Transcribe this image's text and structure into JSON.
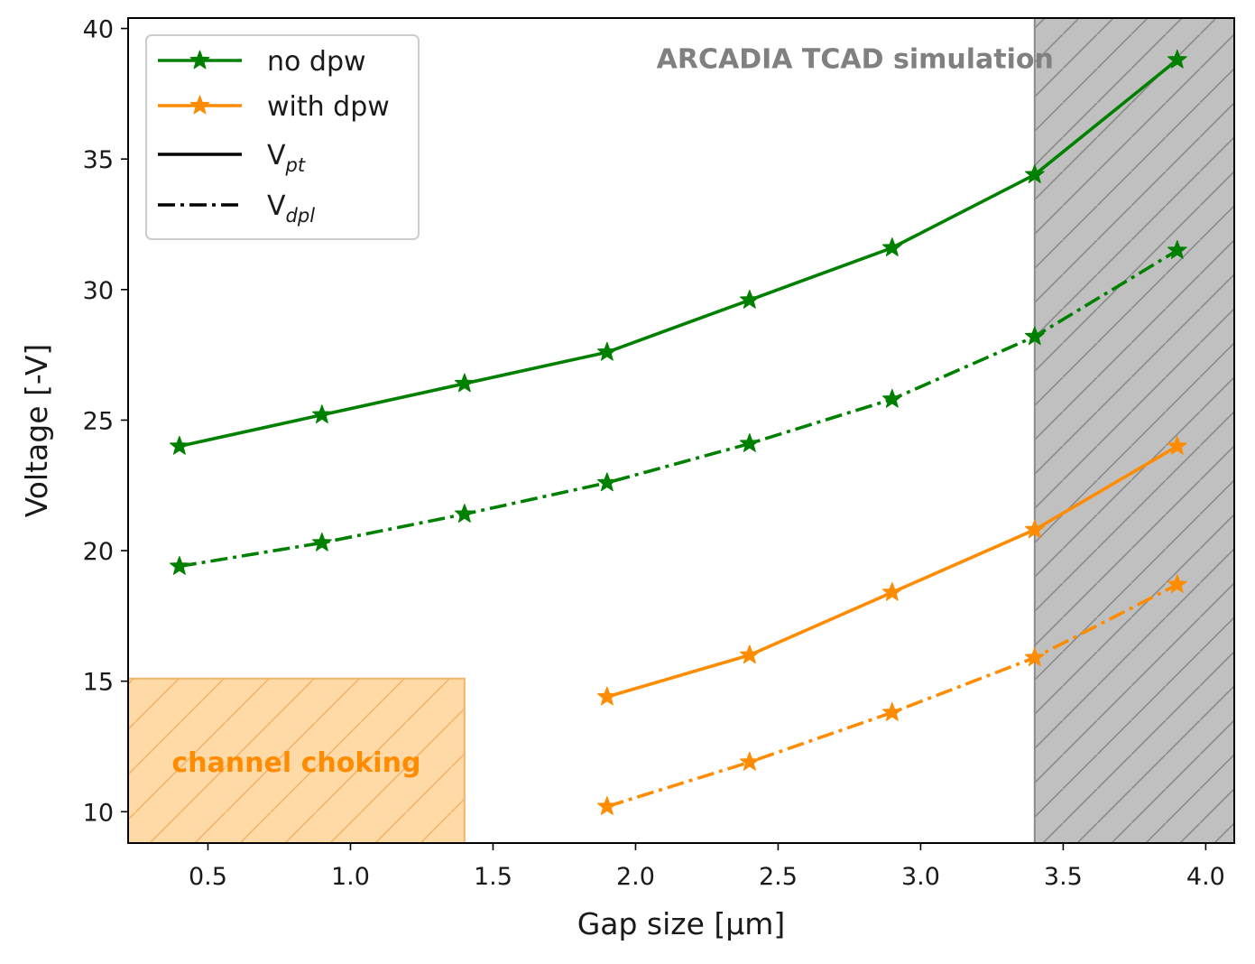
{
  "chart_data": {
    "type": "line",
    "title": "",
    "xlabel": "Gap size [μm]",
    "ylabel": "Voltage [-V]",
    "xlim": [
      0.22,
      4.1
    ],
    "ylim": [
      8.8,
      40.4
    ],
    "xticks": [
      0.5,
      1.0,
      1.5,
      2.0,
      2.5,
      3.0,
      3.5,
      4.0
    ],
    "xtick_labels": [
      "0.5",
      "1.0",
      "1.5",
      "2.0",
      "2.5",
      "3.0",
      "3.5",
      "4.0"
    ],
    "yticks": [
      10,
      15,
      20,
      25,
      30,
      35,
      40
    ],
    "ytick_labels": [
      "10",
      "15",
      "20",
      "25",
      "30",
      "35",
      "40"
    ],
    "grid": false,
    "legend_position": "top-left",
    "legend": [
      {
        "label": "no dpw",
        "kind": "color",
        "color": "#008000"
      },
      {
        "label": "with dpw",
        "kind": "color",
        "color": "#ff8c00"
      },
      {
        "label": "V",
        "sub": "pt",
        "kind": "style",
        "style": "solid"
      },
      {
        "label": "V",
        "sub": "dpl",
        "kind": "style",
        "style": "dashdot"
      }
    ],
    "series": [
      {
        "name": "no dpw V_pt",
        "color": "#008000",
        "style": "solid",
        "x": [
          0.4,
          0.9,
          1.4,
          1.9,
          2.4,
          2.9,
          3.4,
          3.9
        ],
        "y": [
          24.0,
          25.2,
          26.4,
          27.6,
          29.6,
          31.6,
          34.4,
          38.8
        ]
      },
      {
        "name": "no dpw V_dpl",
        "color": "#008000",
        "style": "dashdot",
        "x": [
          0.4,
          0.9,
          1.4,
          1.9,
          2.4,
          2.9,
          3.4,
          3.9
        ],
        "y": [
          19.4,
          20.3,
          21.4,
          22.6,
          24.1,
          25.8,
          28.2,
          31.5
        ]
      },
      {
        "name": "with dpw V_pt",
        "color": "#ff8c00",
        "style": "solid",
        "x": [
          1.9,
          2.4,
          2.9,
          3.4,
          3.9
        ],
        "y": [
          14.4,
          16.0,
          18.4,
          20.8,
          24.0
        ]
      },
      {
        "name": "with dpw V_dpl",
        "color": "#ff8c00",
        "style": "dashdot",
        "x": [
          1.9,
          2.4,
          2.9,
          3.4,
          3.9
        ],
        "y": [
          10.2,
          11.9,
          13.8,
          15.9,
          18.7
        ]
      }
    ],
    "regions": [
      {
        "name": "channel-choking-region",
        "x": [
          0.22,
          1.4
        ],
        "y": [
          8.8,
          15.1
        ],
        "fill": "#ffd9a6",
        "hatch": "#f5b46c",
        "label": "channel choking"
      },
      {
        "name": "gray-hatched-region",
        "x": [
          3.4,
          4.1
        ],
        "y": [
          8.8,
          40.4
        ],
        "fill": "#c0c0c0",
        "hatch": "#8a8a8a"
      }
    ],
    "annotations": [
      {
        "text": "ARCADIA TCAD simulation",
        "x": 2.77,
        "y": 39.0,
        "color": "#808080"
      }
    ]
  }
}
